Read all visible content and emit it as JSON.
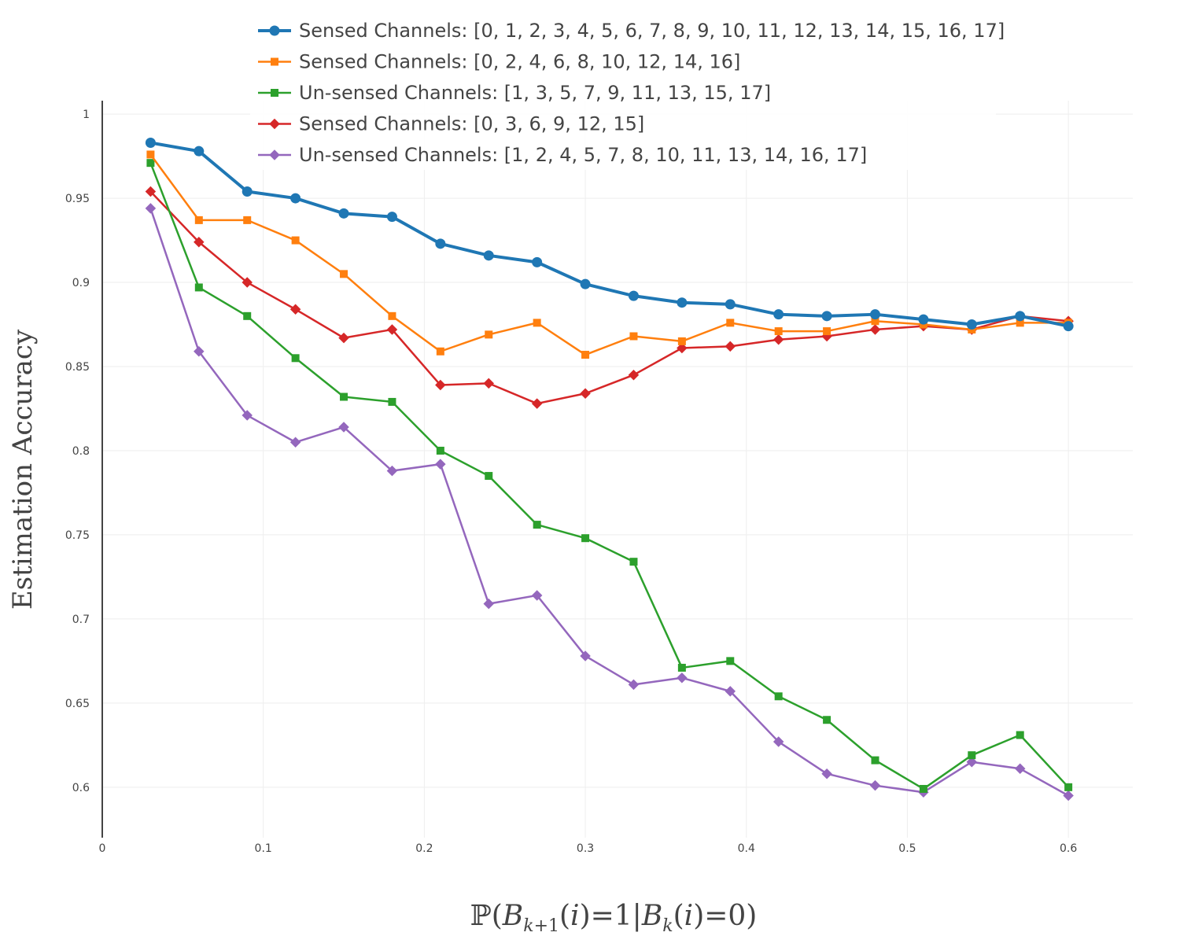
{
  "chart_data": {
    "type": "line",
    "title": "",
    "xlabel": "ℙ(B_{k+1}(i)=1|B_k(i)=0)",
    "ylabel": "Estimation Accuracy",
    "xlim": [
      0,
      0.64
    ],
    "ylim": [
      0.57,
      1.008
    ],
    "x_ticks": [
      0,
      0.1,
      0.2,
      0.3,
      0.4,
      0.5,
      0.6
    ],
    "x_tick_labels": [
      "0",
      "0.1",
      "0.2",
      "0.3",
      "0.4",
      "0.5",
      "0.6"
    ],
    "y_ticks": [
      0.6,
      0.65,
      0.7,
      0.75,
      0.8,
      0.85,
      0.9,
      0.95,
      1
    ],
    "y_tick_labels": [
      "0.6",
      "0.65",
      "0.7",
      "0.75",
      "0.8",
      "0.85",
      "0.9",
      "0.95",
      "1"
    ],
    "grid": true,
    "legend_position": "top-center",
    "x": [
      0.03,
      0.06,
      0.09,
      0.12,
      0.15,
      0.18,
      0.21,
      0.24,
      0.27,
      0.3,
      0.33,
      0.36,
      0.39,
      0.42,
      0.45,
      0.48,
      0.51,
      0.54,
      0.57,
      0.6
    ],
    "series": [
      {
        "name": "Sensed Channels: [0, 1, 2, 3, 4, 5, 6, 7, 8, 9, 10, 11, 12, 13, 14, 15, 16, 17]",
        "color": "#1f77b4",
        "marker": "circle",
        "values": [
          0.983,
          0.978,
          0.954,
          0.95,
          0.941,
          0.939,
          0.923,
          0.916,
          0.912,
          0.899,
          0.892,
          0.888,
          0.887,
          0.881,
          0.88,
          0.881,
          0.878,
          0.875,
          0.88,
          0.874
        ]
      },
      {
        "name": "Sensed Channels: [0, 2, 4, 6, 8, 10, 12, 14, 16]",
        "color": "#ff7f0e",
        "marker": "square",
        "values": [
          0.976,
          0.937,
          0.937,
          0.925,
          0.905,
          0.88,
          0.859,
          0.869,
          0.876,
          0.857,
          0.868,
          0.865,
          0.876,
          0.871,
          0.871,
          0.877,
          0.875,
          0.872,
          0.876,
          0.876
        ]
      },
      {
        "name": "Un-sensed Channels: [1, 3, 5, 7, 9, 11, 13, 15, 17]",
        "color": "#2ca02c",
        "marker": "square",
        "values": [
          0.971,
          0.897,
          0.88,
          0.855,
          0.832,
          0.829,
          0.8,
          0.785,
          0.756,
          0.748,
          0.734,
          0.671,
          0.675,
          0.654,
          0.64,
          0.616,
          0.599,
          0.619,
          0.631,
          0.6
        ]
      },
      {
        "name": "Sensed Channels: [0, 3, 6, 9, 12, 15]",
        "color": "#d62728",
        "marker": "diamond",
        "values": [
          0.954,
          0.924,
          0.9,
          0.884,
          0.867,
          0.872,
          0.839,
          0.84,
          0.828,
          0.834,
          0.845,
          0.861,
          0.862,
          0.866,
          0.868,
          0.872,
          0.874,
          0.872,
          0.88,
          0.877
        ]
      },
      {
        "name": "Un-sensed Channels: [1, 2, 4, 5, 7, 8, 10, 11, 13, 14, 16, 17]",
        "color": "#9467bd",
        "marker": "diamond",
        "values": [
          0.944,
          0.859,
          0.821,
          0.805,
          0.814,
          0.788,
          0.792,
          0.709,
          0.714,
          0.678,
          0.661,
          0.665,
          0.657,
          0.627,
          0.608,
          0.601,
          0.597,
          0.615,
          0.611,
          0.595
        ]
      }
    ]
  }
}
